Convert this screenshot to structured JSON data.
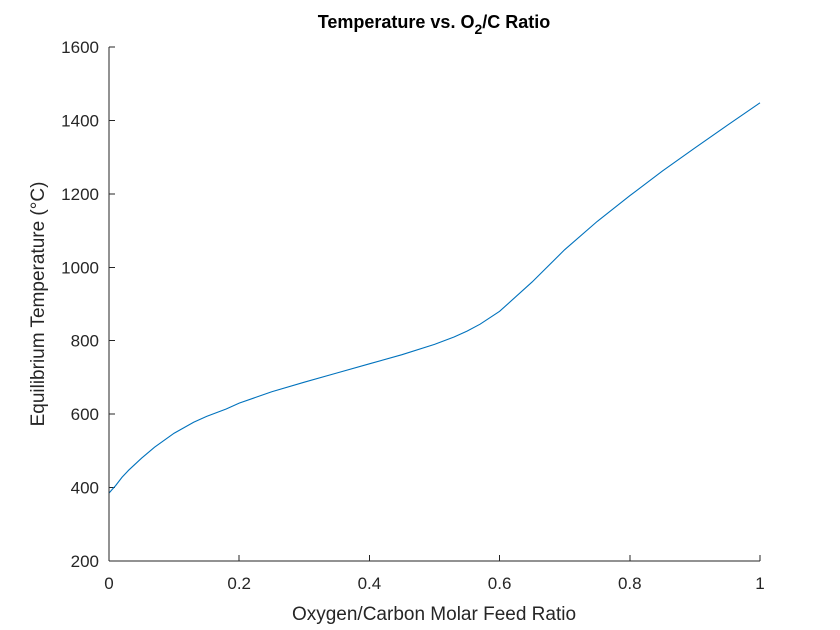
{
  "chart_data": {
    "type": "line",
    "title_main": "Temperature vs. O",
    "title_sub": "2",
    "title_end": "/C Ratio",
    "xlabel": "Oxygen/Carbon Molar Feed Ratio",
    "ylabel": "Equilibrium Temperature (°C)",
    "xlim": [
      0,
      1
    ],
    "ylim": [
      200,
      1600
    ],
    "xticks": [
      0,
      0.2,
      0.4,
      0.6,
      0.8,
      1
    ],
    "xtick_labels": [
      "0",
      "0.2",
      "0.4",
      "0.6",
      "0.8",
      "1"
    ],
    "yticks": [
      200,
      400,
      600,
      800,
      1000,
      1200,
      1400,
      1600
    ],
    "ytick_labels": [
      "200",
      "400",
      "600",
      "800",
      "1000",
      "1200",
      "1400",
      "1600"
    ],
    "grid": false,
    "series": [
      {
        "color": "#0072bd",
        "x": [
          0,
          0.005,
          0.01,
          0.02,
          0.03,
          0.05,
          0.07,
          0.1,
          0.13,
          0.15,
          0.18,
          0.2,
          0.25,
          0.3,
          0.35,
          0.4,
          0.45,
          0.5,
          0.53,
          0.55,
          0.57,
          0.6,
          0.65,
          0.7,
          0.75,
          0.8,
          0.85,
          0.9,
          0.95,
          1.0
        ],
        "y": [
          385,
          395,
          405,
          428,
          447,
          480,
          510,
          548,
          578,
          594,
          614,
          630,
          661,
          687,
          712,
          737,
          762,
          790,
          810,
          826,
          845,
          880,
          960,
          1048,
          1125,
          1195,
          1262,
          1325,
          1387,
          1448
        ]
      }
    ]
  }
}
